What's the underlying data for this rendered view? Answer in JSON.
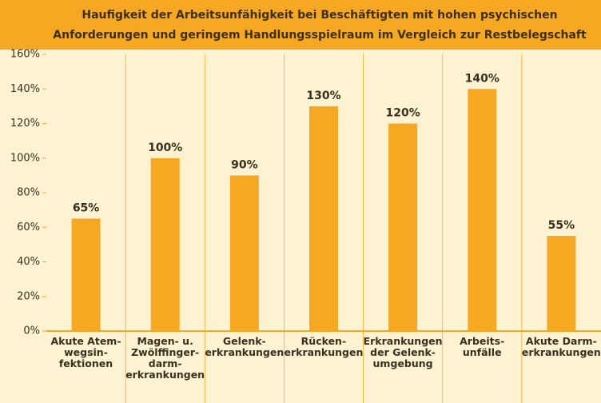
{
  "chart_data": {
    "type": "bar",
    "title": [
      "Haufigkeit der Arbeitsunfähigkeit bei Beschäftigten mit hohen psychischen",
      "Anforderungen und geringem Handlungsspielraum im Vergleich zur Restbelegschaft"
    ],
    "categories": [
      "Akute Atem-\nwegsin-\nfektionen",
      "Magen- u.\nZwölffinger-\ndarm-\nerkrankungen",
      "Gelenk-\nerkrankungen",
      "Rücken-\nerkrankungen",
      "Erkrankungen\nder Gelenk-\numgebung",
      "Arbeits-\nunfälle",
      "Akute Darm-\nerkrankungen"
    ],
    "values": [
      65,
      100,
      90,
      130,
      120,
      140,
      55
    ],
    "value_labels": [
      "65%",
      "100%",
      "90%",
      "130%",
      "120%",
      "140%",
      "55%"
    ],
    "color": "#f7a823",
    "ylim": [
      0,
      160
    ],
    "yticks": [
      {
        "value": 0,
        "label": "0%"
      },
      {
        "value": 20,
        "label": "20%"
      },
      {
        "value": 40,
        "label": "40%"
      },
      {
        "value": 60,
        "label": "60%"
      },
      {
        "value": 80,
        "label": "80%"
      },
      {
        "value": 100,
        "label": "100%"
      },
      {
        "value": 120,
        "label": "120%"
      },
      {
        "value": 140,
        "label": "140%"
      },
      {
        "value": 160,
        "label": "160%"
      }
    ]
  }
}
